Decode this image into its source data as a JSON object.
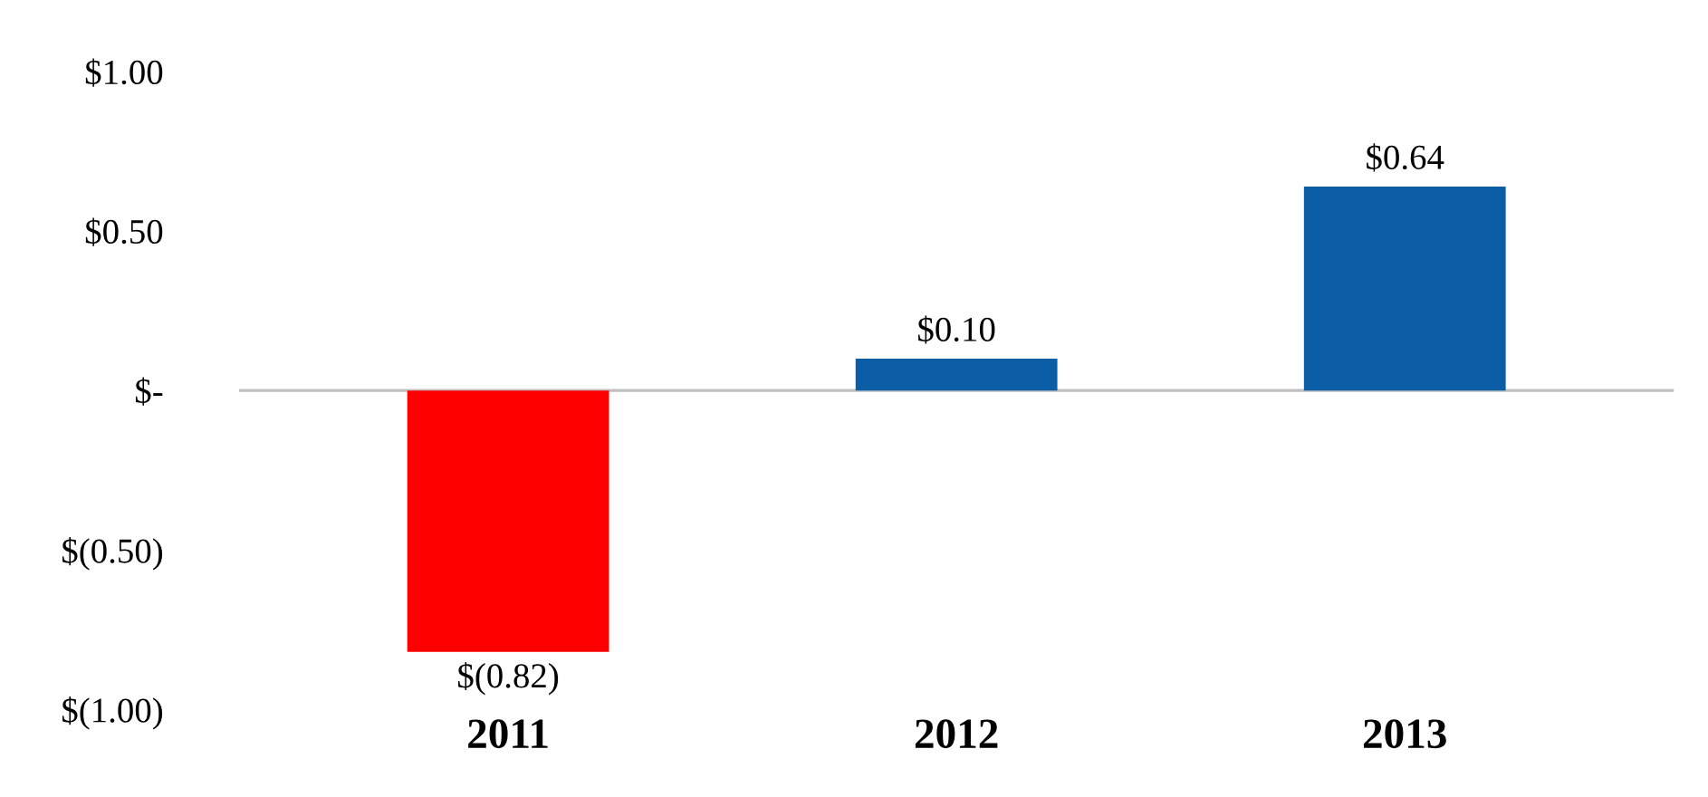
{
  "chart_data": {
    "type": "bar",
    "categories": [
      "2011",
      "2012",
      "2013"
    ],
    "values": [
      -0.82,
      0.1,
      0.64
    ],
    "colors": [
      "#ff0000",
      "#0b5ea6",
      "#0b5ea6"
    ],
    "value_labels": [
      "$(0.82)",
      "$0.10",
      "$0.64"
    ],
    "ylim": [
      -1.0,
      1.0
    ],
    "yticks": [
      {
        "value": 1.0,
        "label": "$1.00"
      },
      {
        "value": 0.5,
        "label": "$0.50"
      },
      {
        "value": 0,
        "label": "$-"
      },
      {
        "value": -0.5,
        "label": "$(0.50)"
      },
      {
        "value": -1.0,
        "label": "$(1.00)"
      }
    ],
    "ref_lines": [
      {
        "axis": "y",
        "value": 0,
        "label": null,
        "color": "#c0c0c0"
      }
    ],
    "grid": false,
    "legend": false
  }
}
